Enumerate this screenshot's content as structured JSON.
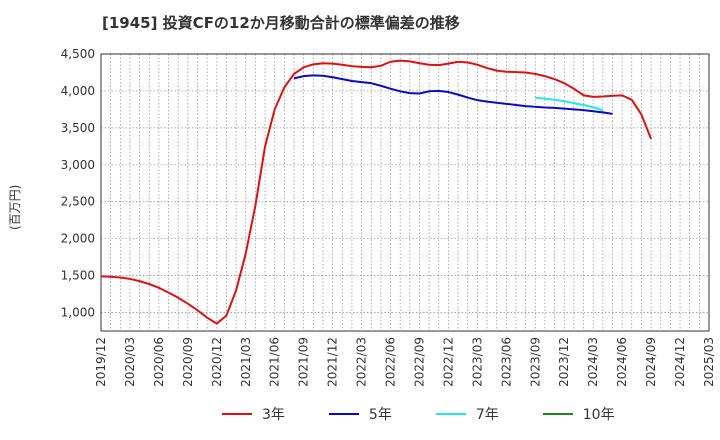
{
  "chart_data": {
    "type": "line",
    "title": "[1945]  投資CFの12か月移動合計の標準偏差の推移",
    "ylabel": "(百万円)",
    "ylim": [
      750,
      4500
    ],
    "yticks": [
      1000,
      1500,
      2000,
      2500,
      3000,
      3500,
      4000,
      4500
    ],
    "ytick_labels": [
      "1,000",
      "1,500",
      "2,000",
      "2,500",
      "3,000",
      "3,500",
      "4,000",
      "4,500"
    ],
    "xticks": [
      "2019/12",
      "2020/03",
      "2020/06",
      "2020/09",
      "2020/12",
      "2021/03",
      "2021/06",
      "2021/09",
      "2021/12",
      "2022/03",
      "2022/06",
      "2022/09",
      "2022/12",
      "2023/03",
      "2023/06",
      "2023/09",
      "2023/12",
      "2024/03",
      "2024/06",
      "2024/09",
      "2024/12",
      "2025/03"
    ],
    "grid": true,
    "series": [
      {
        "name": "3年",
        "color": "#e01010",
        "start": "2019/12",
        "values": [
          1490,
          1485,
          1475,
          1455,
          1425,
          1385,
          1335,
          1270,
          1200,
          1120,
          1030,
          930,
          850,
          960,
          1300,
          1800,
          2450,
          3250,
          3750,
          4050,
          4230,
          4320,
          4360,
          4375,
          4370,
          4355,
          4335,
          4325,
          4320,
          4340,
          4395,
          4410,
          4400,
          4375,
          4355,
          4350,
          4370,
          4395,
          4385,
          4355,
          4310,
          4275,
          4260,
          4255,
          4250,
          4230,
          4200,
          4160,
          4105,
          4030,
          3940,
          3920,
          3925,
          3935,
          3940,
          3880,
          3680,
          3350
        ]
      },
      {
        "name": "5年",
        "color": "#0a0ac8",
        "start": "2021/08",
        "values": [
          4170,
          4200,
          4210,
          4205,
          4185,
          4160,
          4135,
          4120,
          4105,
          4070,
          4030,
          3995,
          3970,
          3965,
          3995,
          4000,
          3985,
          3950,
          3910,
          3875,
          3855,
          3840,
          3825,
          3810,
          3795,
          3785,
          3775,
          3770,
          3760,
          3750,
          3740,
          3725,
          3710,
          3690
        ]
      },
      {
        "name": "7年",
        "color": "#20e8e8",
        "start": "2023/09",
        "values": [
          3910,
          3895,
          3880,
          3860,
          3835,
          3810,
          3780,
          3740
        ]
      },
      {
        "name": "10年",
        "color": "#1a8a1a",
        "start": "2024/03",
        "values": []
      }
    ]
  }
}
